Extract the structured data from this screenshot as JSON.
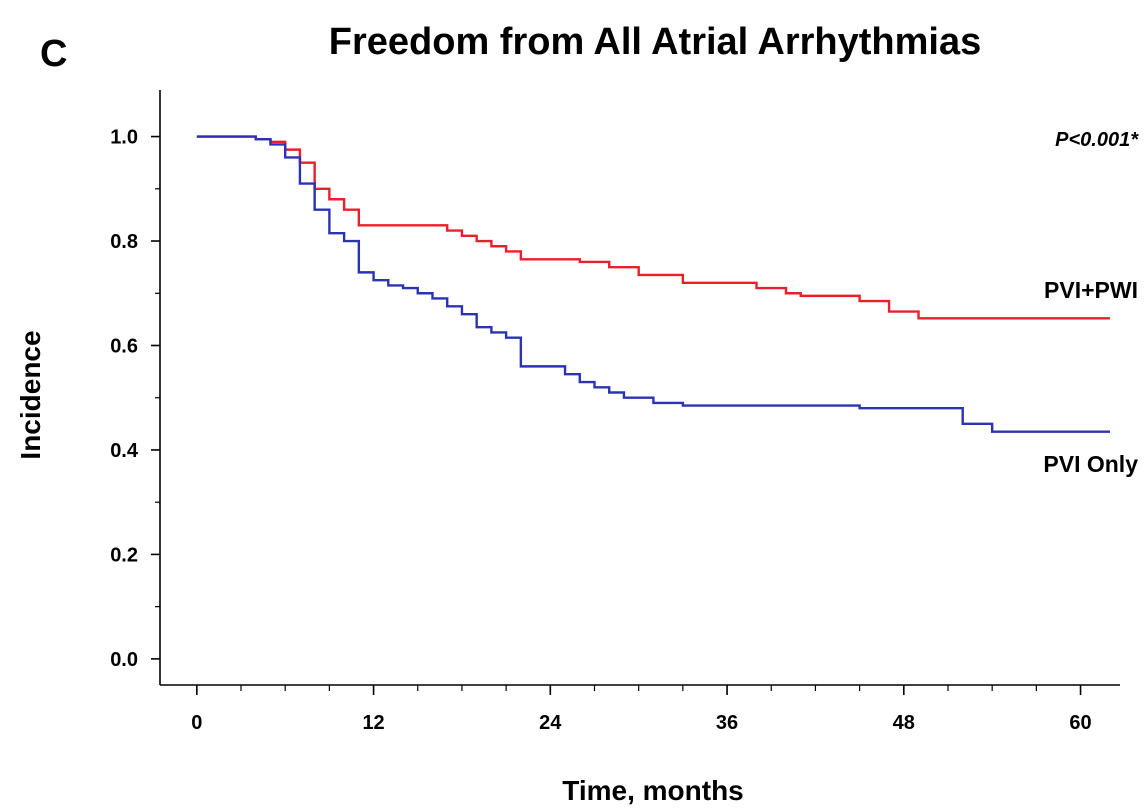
{
  "panel_label": "C",
  "chart_data": {
    "type": "line",
    "title": "Freedom from All Atrial Arrhythmias",
    "xlabel": "Time, months",
    "ylabel": "Incidence",
    "xlim": [
      -2.5,
      62
    ],
    "ylim": [
      -0.05,
      1.07
    ],
    "xticks": [
      0,
      12,
      24,
      36,
      48,
      60
    ],
    "yticks": [
      0.0,
      0.2,
      0.4,
      0.6,
      0.8,
      1.0
    ],
    "ytick_labels": [
      "0.0",
      "0.2",
      "0.4",
      "0.6",
      "0.8",
      "1.0"
    ],
    "grid": false,
    "p_value_text": "P<0.001*",
    "series": [
      {
        "name": "PVI+PWI",
        "color": "#e8202a",
        "x": [
          0,
          4,
          5,
          6,
          7,
          8,
          9,
          10,
          11,
          17,
          18,
          19,
          20,
          21,
          22,
          26,
          28,
          30,
          33,
          38,
          40,
          41,
          45,
          47,
          49,
          62
        ],
        "y": [
          1.0,
          0.995,
          0.99,
          0.975,
          0.95,
          0.9,
          0.88,
          0.86,
          0.83,
          0.82,
          0.81,
          0.8,
          0.79,
          0.78,
          0.765,
          0.76,
          0.75,
          0.735,
          0.72,
          0.71,
          0.7,
          0.695,
          0.685,
          0.665,
          0.652,
          0.652
        ]
      },
      {
        "name": "PVI Only",
        "color": "#2b33b5",
        "x": [
          0,
          4,
          5,
          6,
          7,
          8,
          9,
          10,
          11,
          12,
          13,
          14,
          15,
          16,
          17,
          18,
          19,
          20,
          21,
          22,
          25,
          26,
          27,
          28,
          29,
          31,
          33,
          45,
          52,
          54,
          62
        ],
        "y": [
          1.0,
          0.995,
          0.985,
          0.96,
          0.91,
          0.86,
          0.815,
          0.8,
          0.74,
          0.725,
          0.715,
          0.71,
          0.7,
          0.69,
          0.675,
          0.66,
          0.635,
          0.625,
          0.615,
          0.56,
          0.545,
          0.53,
          0.52,
          0.51,
          0.5,
          0.49,
          0.485,
          0.48,
          0.45,
          0.435,
          0.435
        ]
      }
    ],
    "annotations": [
      {
        "text": "PVI+PWI",
        "series": 0
      },
      {
        "text": "PVI Only",
        "series": 1
      }
    ]
  }
}
